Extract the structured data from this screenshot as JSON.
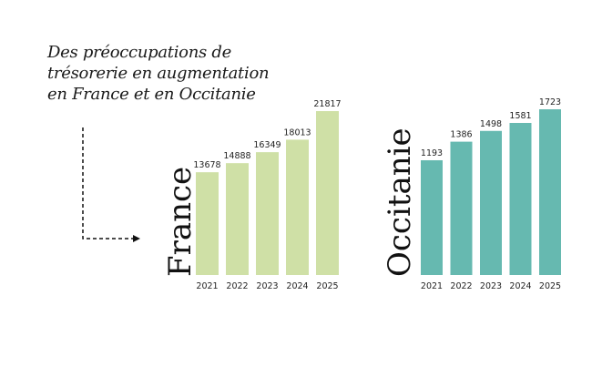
{
  "title_lines": [
    "Des préoccupations de",
    "trésorerie en augmentation",
    "en France et en Occitanie"
  ],
  "colors": {
    "france": "#cfe0a6",
    "occitanie": "#66b9b0",
    "text": "#1a1a1a"
  },
  "chart_data": [
    {
      "type": "bar",
      "label": "France",
      "categories": [
        "2021",
        "2022",
        "2023",
        "2024",
        "2025"
      ],
      "values": [
        13678,
        14888,
        16349,
        18013,
        21817
      ]
    },
    {
      "type": "bar",
      "label": "Occitanie",
      "categories": [
        "2021",
        "2022",
        "2023",
        "2024",
        "2025"
      ],
      "values": [
        1193,
        1386,
        1498,
        1581,
        1723
      ]
    }
  ]
}
